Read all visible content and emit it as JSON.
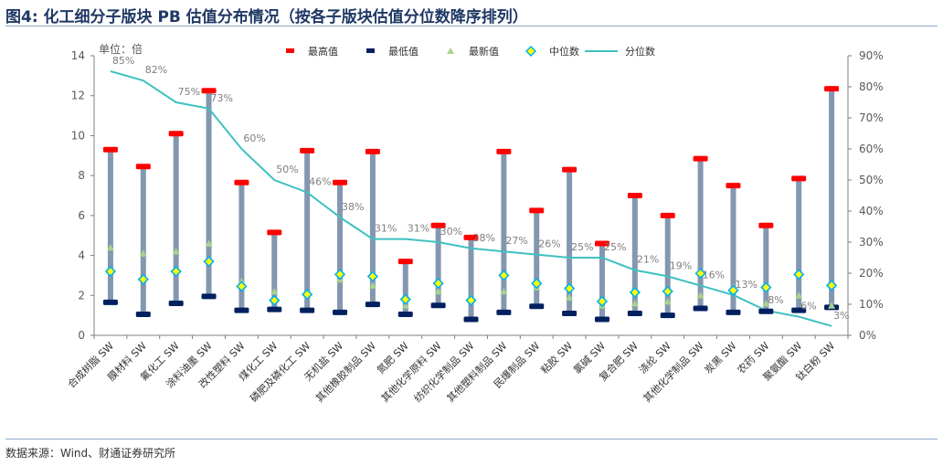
{
  "title": "图4: 化工细分子版块 PB 估值分布情况（按各子版块估值分位数降序排列）",
  "source": "数据来源：Wind、财通证券研究所",
  "colors": {
    "max": "#ff0000",
    "min": "#002060",
    "latest": "#a9d18e",
    "median_fill": "#ffff00",
    "median_stroke": "#00b0f0",
    "bar": "#8497b0",
    "line": "#3fc1c0"
  },
  "chart_data": {
    "type": "line",
    "unit_label": "单位：倍",
    "y_left": {
      "lim": [
        0,
        14
      ],
      "ticks": [
        "0",
        "2",
        "4",
        "6",
        "8",
        "10",
        "12",
        "14"
      ]
    },
    "y_right": {
      "lim": [
        0,
        90
      ],
      "ticks": [
        "0%",
        "10%",
        "20%",
        "30%",
        "40%",
        "50%",
        "60%",
        "70%",
        "80%",
        "90%"
      ]
    },
    "legend": [
      "最高值",
      "最低值",
      "最新值",
      "中位数",
      "分位数"
    ],
    "legend_position": "top",
    "categories": [
      "合成树脂 SW",
      "膜材料 SW",
      "氟化工 SW",
      "涂料油墨 SW",
      "改性塑料 SW",
      "煤化工 SW",
      "磷肥及磷化工 SW",
      "无机盐 SW",
      "其他橡胶制品 SW",
      "氮肥 SW",
      "其他化学原料 SW",
      "纺织化学制品 SW",
      "其他塑料制品 SW",
      "民爆制品 SW",
      "粘胶 SW",
      "氯碱 SW",
      "复合肥 SW",
      "涤纶 SW",
      "其他化学制品 SW",
      "炭黑 SW",
      "农药 SW",
      "聚氨酯 SW",
      "钛白粉 SW"
    ],
    "max": [
      9.3,
      8.45,
      10.1,
      12.25,
      7.65,
      5.15,
      9.25,
      7.65,
      9.2,
      3.7,
      5.5,
      4.9,
      9.2,
      6.25,
      8.3,
      4.6,
      7.0,
      6.0,
      8.85,
      7.5,
      5.5,
      7.85,
      12.35
    ],
    "min": [
      1.65,
      1.05,
      1.6,
      1.95,
      1.25,
      1.3,
      1.25,
      1.15,
      1.55,
      1.05,
      1.5,
      0.8,
      1.15,
      1.45,
      1.1,
      0.8,
      1.1,
      1.0,
      1.35,
      1.15,
      1.2,
      1.25,
      1.4
    ],
    "latest": [
      4.4,
      4.1,
      4.2,
      4.6,
      2.7,
      2.2,
      2.0,
      2.8,
      2.5,
      1.5,
      2.2,
      1.9,
      2.2,
      2.4,
      1.9,
      1.5,
      1.6,
      1.7,
      2.0,
      2.4,
      1.6,
      2.0,
      1.5
    ],
    "median": [
      3.2,
      2.8,
      3.2,
      3.7,
      2.45,
      1.75,
      2.05,
      3.05,
      2.95,
      1.8,
      2.6,
      1.75,
      3.0,
      2.6,
      2.35,
      1.7,
      2.15,
      2.2,
      3.1,
      2.25,
      2.4,
      3.05,
      2.5
    ],
    "percentile": [
      85,
      82,
      75,
      73,
      60,
      50,
      46,
      38,
      31,
      31,
      30,
      28,
      27,
      26,
      25,
      25,
      21,
      19,
      16,
      13,
      8,
      6,
      3
    ],
    "percentile_labels": [
      "85%",
      "82%",
      "75%",
      "73%",
      "60%",
      "50%",
      "46%",
      "38%",
      "31%",
      "31%",
      "30%",
      "28%",
      "27%",
      "26%",
      "25%",
      "25%",
      "21%",
      "19%",
      "16%",
      "13%",
      "8%",
      "6%",
      "3%"
    ]
  }
}
